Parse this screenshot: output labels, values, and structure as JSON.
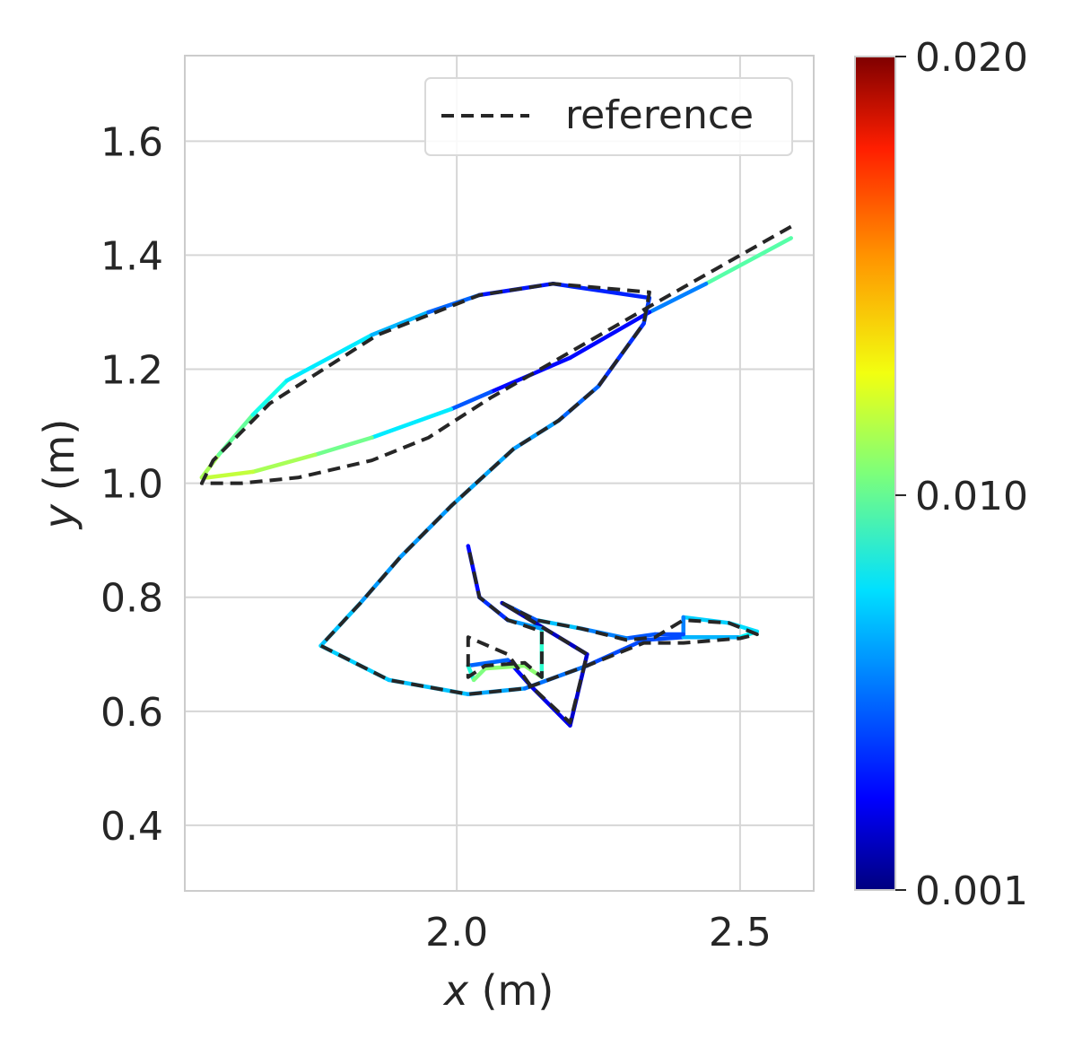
{
  "chart_data": {
    "type": "line",
    "title": "",
    "xlabel": {
      "var": "x",
      "unit": " (m)"
    },
    "ylabel": {
      "var": "y",
      "unit": " (m)"
    },
    "xlim": [
      1.52,
      2.63
    ],
    "ylim": [
      0.285,
      1.75
    ],
    "xticks": [
      "2.0",
      "2.5"
    ],
    "yticks": [
      "0.4",
      "0.6",
      "0.8",
      "1.0",
      "1.2",
      "1.4",
      "1.6"
    ],
    "grid": true,
    "legend": {
      "placement": "top-right",
      "entries": [
        "reference"
      ]
    },
    "colorbar": {
      "min": 0.001,
      "max": 0.02,
      "ticks": [
        "0.001",
        "0.010",
        "0.020"
      ],
      "colormap": "jet"
    },
    "reference": {
      "color": "#262626",
      "x": [
        2.59,
        2.34,
        2.06,
        1.95,
        1.85,
        1.72,
        1.62,
        1.55,
        1.57,
        1.67,
        1.86,
        2.04,
        2.17,
        2.34,
        2.33,
        2.25,
        2.18,
        2.1,
        1.99,
        1.9,
        1.83,
        1.76,
        1.88,
        2.02,
        2.12,
        2.23,
        2.33,
        2.4,
        2.5,
        2.53,
        2.48,
        2.4,
        2.35,
        2.3,
        2.22,
        2.14,
        2.08,
        2.23,
        2.2,
        2.13,
        2.09,
        2.02,
        2.02,
        2.05,
        2.12,
        2.15,
        2.15,
        2.09,
        2.04,
        2.02
      ],
      "y": [
        1.45,
        1.31,
        1.15,
        1.08,
        1.04,
        1.01,
        1.0,
        1.0,
        1.04,
        1.14,
        1.26,
        1.33,
        1.35,
        1.335,
        1.28,
        1.17,
        1.11,
        1.06,
        0.96,
        0.87,
        0.79,
        0.715,
        0.655,
        0.63,
        0.64,
        0.68,
        0.72,
        0.72,
        0.728,
        0.735,
        0.755,
        0.76,
        0.73,
        0.725,
        0.745,
        0.76,
        0.79,
        0.7,
        0.58,
        0.645,
        0.7,
        0.73,
        0.66,
        0.68,
        0.685,
        0.66,
        0.74,
        0.76,
        0.8,
        0.89
      ]
    },
    "trajectory": {
      "x": [
        2.59,
        2.44,
        2.34,
        2.2,
        2.06,
        1.99,
        1.85,
        1.75,
        1.64,
        1.56,
        1.55,
        1.58,
        1.64,
        1.7,
        1.85,
        1.95,
        2.04,
        2.17,
        2.34,
        2.33,
        2.25,
        2.18,
        2.1,
        1.99,
        1.9,
        1.83,
        1.76,
        1.88,
        2.02,
        2.12,
        2.23,
        2.33,
        2.4,
        2.5,
        2.53,
        2.48,
        2.4,
        2.4,
        2.35,
        2.3,
        2.22,
        2.14,
        2.08,
        2.23,
        2.2,
        2.13,
        2.09,
        2.02,
        2.03,
        2.05,
        2.12,
        2.15,
        2.15,
        2.09,
        2.04,
        2.02
      ],
      "y": [
        1.43,
        1.35,
        1.3,
        1.22,
        1.16,
        1.13,
        1.08,
        1.05,
        1.02,
        1.01,
        1.01,
        1.05,
        1.12,
        1.18,
        1.26,
        1.3,
        1.33,
        1.35,
        1.325,
        1.28,
        1.17,
        1.11,
        1.06,
        0.96,
        0.87,
        0.79,
        0.715,
        0.655,
        0.63,
        0.64,
        0.68,
        0.725,
        0.73,
        0.73,
        0.74,
        0.755,
        0.765,
        0.735,
        0.735,
        0.728,
        0.745,
        0.76,
        0.79,
        0.7,
        0.575,
        0.645,
        0.69,
        0.68,
        0.655,
        0.675,
        0.68,
        0.66,
        0.745,
        0.76,
        0.8,
        0.89
      ],
      "error": [
        0.012,
        0.0075,
        0.004,
        0.003,
        0.004,
        0.006,
        0.0095,
        0.011,
        0.0115,
        0.012,
        0.0115,
        0.011,
        0.009,
        0.008,
        0.0075,
        0.006,
        0.0045,
        0.003,
        0.005,
        0.004,
        0.0045,
        0.006,
        0.0065,
        0.0065,
        0.006,
        0.0065,
        0.0075,
        0.007,
        0.007,
        0.006,
        0.005,
        0.0045,
        0.005,
        0.0085,
        0.0075,
        0.0075,
        0.007,
        0.0045,
        0.005,
        0.005,
        0.0065,
        0.0075,
        0.0025,
        0.002,
        0.003,
        0.003,
        0.004,
        0.0065,
        0.011,
        0.01,
        0.0115,
        0.01,
        0.008,
        0.0045,
        0.004,
        0.003
      ]
    }
  }
}
